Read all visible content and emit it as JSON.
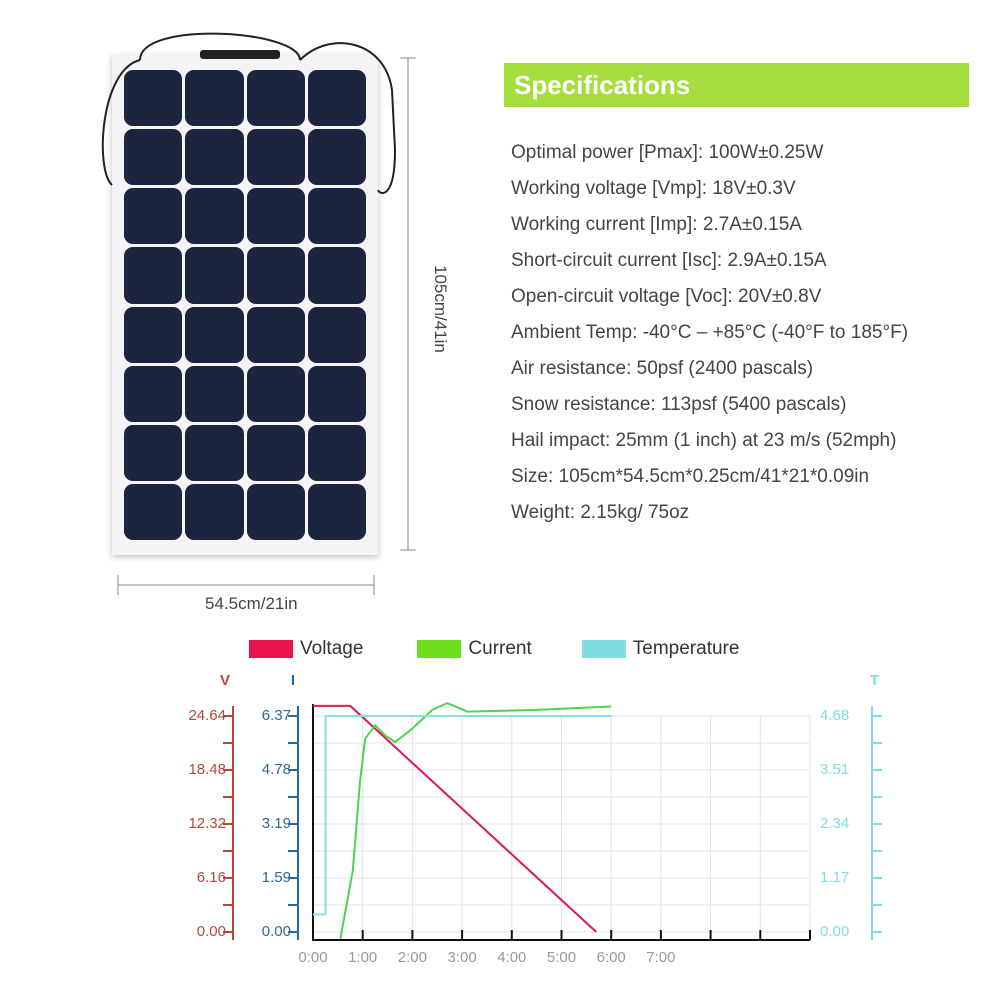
{
  "product": {
    "width_label": "54.5cm/21in",
    "height_label": "105cm/41in",
    "cells": 32
  },
  "specs": {
    "title": "Specifications",
    "accent": "#a5dd3f",
    "items": [
      "Optimal power [Pmax]: 100W±0.25W",
      "Working voltage [Vmp]: 18V±0.3V",
      "Working current [Imp]: 2.7A±0.15A",
      "Short-circuit current [Isc]: 2.9A±0.15A",
      "Open-circuit voltage [Voc]: 20V±0.8V",
      "Ambient Temp: -40°C  –  +85°C (-40°F to 185°F)",
      "Air resistance: 50psf (2400 pascals)",
      "Snow resistance: 113psf (5400 pascals)",
      "Hail impact: 25mm (1 inch) at 23 m/s (52mph)",
      "Size: 105cm*54.5cm*0.25cm/41*21*0.09in",
      "Weight: 2.15kg/ 75oz"
    ]
  },
  "chart_data": {
    "type": "line",
    "legend": [
      {
        "name": "Voltage",
        "color": "#e8134f"
      },
      {
        "name": "Current",
        "color": "#6ddd1c"
      },
      {
        "name": "Temperature",
        "color": "#7fdde0"
      }
    ],
    "legend_placement": "top",
    "grid": true,
    "x_ticks": [
      "0:00",
      "1:00",
      "2:00",
      "3:00",
      "4:00",
      "5:00",
      "6:00",
      "7:00"
    ],
    "xlim": [
      0,
      10
    ],
    "axes": [
      {
        "label": "V",
        "color": "#b5473a",
        "ticks": [
          "0.00",
          "6.16",
          "12.32",
          "18.48",
          "24.64"
        ],
        "ylim": [
          0,
          24.64
        ]
      },
      {
        "label": "I",
        "color": "#2a6a9a",
        "ticks": [
          "0.00",
          "1.59",
          "3.19",
          "4.78",
          "6.37"
        ],
        "ylim": [
          0,
          6.37
        ]
      },
      {
        "label": "T",
        "color": "#7fdde0",
        "ticks": [
          "0.00",
          "1.17",
          "2.34",
          "3.51",
          "4.68"
        ],
        "ylim": [
          0,
          4.68
        ]
      }
    ],
    "series": [
      {
        "name": "Voltage",
        "axis": 0,
        "color": "#d81b50",
        "x": [
          0,
          0.75,
          5.7
        ],
        "y": [
          25.8,
          25.8,
          0
        ]
      },
      {
        "name": "Current",
        "axis": 1,
        "color": "#4fd24f",
        "x": [
          0.55,
          0.8,
          0.95,
          1.05,
          1.25,
          1.45,
          1.65,
          2.0,
          2.4,
          2.7,
          2.95,
          3.1,
          4.5,
          6.0
        ],
        "y": [
          -0.2,
          1.8,
          4.5,
          5.7,
          6.1,
          5.8,
          5.6,
          6.0,
          6.55,
          6.75,
          6.6,
          6.5,
          6.55,
          6.65
        ]
      },
      {
        "name": "Temperature",
        "axis": 2,
        "color": "#8edde0",
        "x": [
          0,
          0.25,
          0.25,
          6.0
        ],
        "y": [
          0.38,
          0.38,
          4.68,
          4.68
        ]
      }
    ]
  }
}
